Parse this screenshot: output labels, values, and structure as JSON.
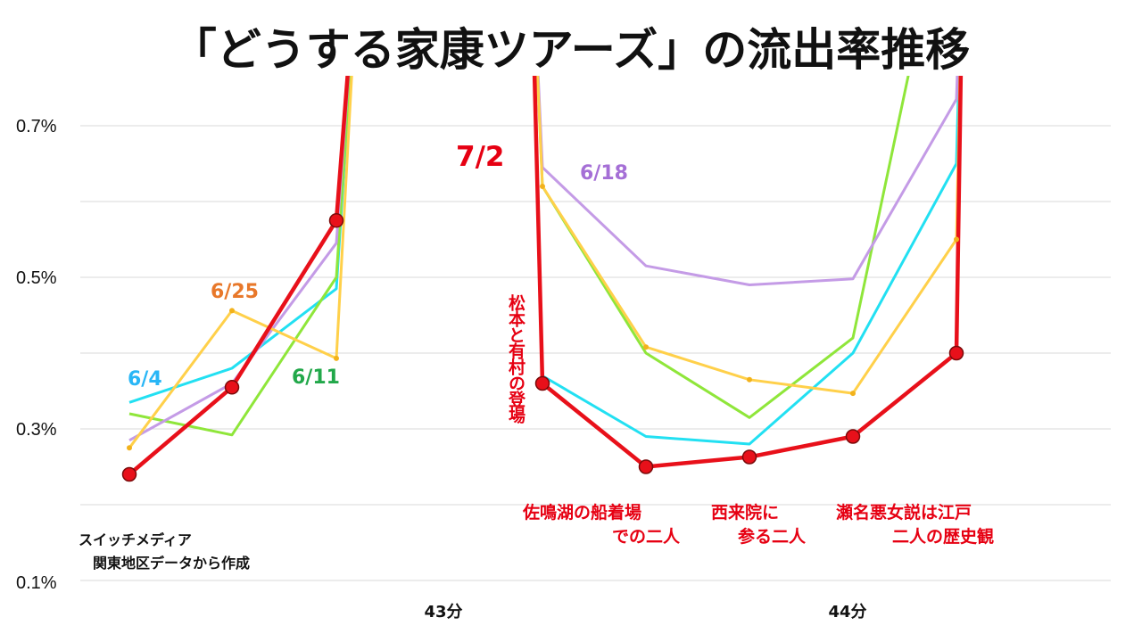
{
  "chart_data": {
    "type": "line",
    "title": "「どうする家康ツアーズ」の流出率推移",
    "y_ticks": [
      "0.7%",
      "0.5%",
      "0.3%",
      "0.1%"
    ],
    "ylim": [
      0.1,
      0.75
    ],
    "x_ticks": [
      "43分",
      "44分"
    ],
    "series": [
      {
        "name": "6/4",
        "color": "#22e0f2",
        "label_color": "#29b6f6",
        "segments": [
          [
            0.335,
            0.38,
            0.485,
            1.0
          ],
          [
            1.0,
            0.37,
            0.29,
            0.28,
            0.4,
            0.65,
            1.0
          ]
        ]
      },
      {
        "name": "6/11",
        "color": "#8fe63a",
        "label_color": "#22a84a",
        "segments": [
          [
            0.32,
            0.292,
            0.5,
            1.0
          ],
          [
            1.0,
            0.62,
            0.4,
            0.315,
            0.42,
            1.0
          ]
        ]
      },
      {
        "name": "6/18",
        "color": "#c49be6",
        "label_color": "#a56fd6",
        "segments": [
          [
            0.285,
            0.36,
            0.545,
            1.0
          ],
          [
            1.0,
            0.645,
            0.515,
            0.49,
            0.498,
            0.735,
            1.0
          ]
        ]
      },
      {
        "name": "6/25",
        "color": "#ffd04a",
        "label_color": "#e8782a",
        "segments": [
          [
            0.275,
            0.456,
            0.393,
            1.0
          ],
          [
            1.0,
            0.62,
            0.408,
            0.365,
            0.347,
            0.55,
            1.0
          ]
        ]
      },
      {
        "name": "7/2",
        "color": "#e8101a",
        "label_color": "#e60012",
        "segments": [
          [
            0.24,
            0.355,
            0.575,
            1.0
          ],
          [
            1.0,
            0.36,
            0.25,
            0.263,
            0.29,
            0.4,
            1.0
          ]
        ]
      }
    ],
    "annotations": {
      "tohjo": "松本と有村の登場",
      "a1_line1": "佐鳴湖の船着場",
      "a1_line2": "での二人",
      "a2_line1": "西来院に",
      "a2_line2": "参る二人",
      "a3_line1": "瀬名悪女説は江戸",
      "a3_line2": "二人の歴史観"
    },
    "source_line1": "スイッチメディア",
    "source_line2": "関東地区データから作成"
  }
}
